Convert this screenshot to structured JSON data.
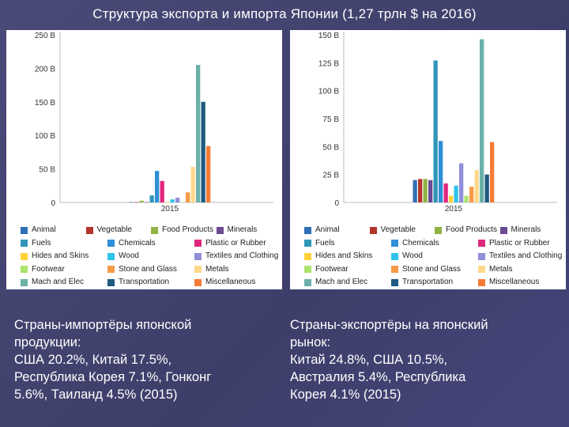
{
  "title": "Структура экспорта и импорта Японии (1,27 трлн $ на 2016)",
  "legend_labels": [
    "Animal",
    "Vegetable",
    "Food Products",
    "Minerals",
    "Fuels",
    "Chemicals",
    "Plastic or Rubber",
    "Hides and Skins",
    "Wood",
    "Textiles and Clothing",
    "Footwear",
    "Stone and Glass",
    "Metals",
    "Mach and Elec",
    "Transportation",
    "Miscellaneous"
  ],
  "chart_data": [
    {
      "type": "bar",
      "ylim": [
        0,
        250
      ],
      "yticks": [
        "0",
        "50 B",
        "100 B",
        "150 B",
        "200 B",
        "250 B"
      ],
      "categories": [
        "2015"
      ],
      "series": [
        {
          "name": "Animal",
          "values": [
            0.5
          ],
          "color": "#2f6fb5"
        },
        {
          "name": "Vegetable",
          "values": [
            0.3
          ],
          "color": "#b5352b"
        },
        {
          "name": "Food Products",
          "values": [
            2.5
          ],
          "color": "#8fb442"
        },
        {
          "name": "Minerals",
          "values": [
            0.5
          ],
          "color": "#6b4a94"
        },
        {
          "name": "Fuels",
          "values": [
            10.5
          ],
          "color": "#2f96b8"
        },
        {
          "name": "Chemicals",
          "values": [
            47
          ],
          "color": "#2f8fd8"
        },
        {
          "name": "Plastic or Rubber",
          "values": [
            32
          ],
          "color": "#e0287e"
        },
        {
          "name": "Hides and Skins",
          "values": [
            0.5
          ],
          "color": "#ffd23a"
        },
        {
          "name": "Wood",
          "values": [
            4.5
          ],
          "color": "#2fc3ea"
        },
        {
          "name": "Textiles and Clothing",
          "values": [
            7
          ],
          "color": "#8f8fd9"
        },
        {
          "name": "Footwear",
          "values": [
            0.5
          ],
          "color": "#aee36c"
        },
        {
          "name": "Stone and Glass",
          "values": [
            15
          ],
          "color": "#f79a46"
        },
        {
          "name": "Metals",
          "values": [
            53
          ],
          "color": "#ffd98a"
        },
        {
          "name": "Mach and Elec",
          "values": [
            205
          ],
          "color": "#6ab0a8"
        },
        {
          "name": "Transportation",
          "values": [
            150
          ],
          "color": "#1f5a80"
        },
        {
          "name": "Miscellaneous",
          "values": [
            84
          ],
          "color": "#f47b36"
        }
      ]
    },
    {
      "type": "bar",
      "ylim": [
        0,
        150
      ],
      "yticks": [
        "0",
        "25 B",
        "50 B",
        "75 B",
        "100 B",
        "125 B",
        "150 B"
      ],
      "categories": [
        "2015"
      ],
      "series": [
        {
          "name": "Animal",
          "values": [
            20
          ],
          "color": "#2f6fb5"
        },
        {
          "name": "Vegetable",
          "values": [
            21
          ],
          "color": "#b5352b"
        },
        {
          "name": "Food Products",
          "values": [
            21
          ],
          "color": "#8fb442"
        },
        {
          "name": "Minerals",
          "values": [
            20
          ],
          "color": "#6b4a94"
        },
        {
          "name": "Fuels",
          "values": [
            127
          ],
          "color": "#2f96b8"
        },
        {
          "name": "Chemicals",
          "values": [
            55
          ],
          "color": "#2f8fd8"
        },
        {
          "name": "Plastic or Rubber",
          "values": [
            17
          ],
          "color": "#e0287e"
        },
        {
          "name": "Hides and Skins",
          "values": [
            6
          ],
          "color": "#ffd23a"
        },
        {
          "name": "Wood",
          "values": [
            15
          ],
          "color": "#2fc3ea"
        },
        {
          "name": "Textiles and Clothing",
          "values": [
            35
          ],
          "color": "#8f8fd9"
        },
        {
          "name": "Footwear",
          "values": [
            6
          ],
          "color": "#aee36c"
        },
        {
          "name": "Stone and Glass",
          "values": [
            14
          ],
          "color": "#f79a46"
        },
        {
          "name": "Metals",
          "values": [
            29
          ],
          "color": "#ffd98a"
        },
        {
          "name": "Mach and Elec",
          "values": [
            146
          ],
          "color": "#6ab0a8"
        },
        {
          "name": "Transportation",
          "values": [
            25
          ],
          "color": "#1f5a80"
        },
        {
          "name": "Miscellaneous",
          "values": [
            54
          ],
          "color": "#f47b36"
        }
      ]
    }
  ],
  "captions": {
    "left": "Страны-импортёры японской\nпродукции:\nСША 20.2%, Китай 17.5%,\nРеспублика Корея 7.1%, Гонконг\n5.6%, Таиланд 4.5% (2015)",
    "right": "Страны-экспортёры на японский\nрынок:\nКитай 24.8%, США 10.5%,\nАвстралия 5.4%, Республика\nКорея 4.1% (2015)"
  }
}
